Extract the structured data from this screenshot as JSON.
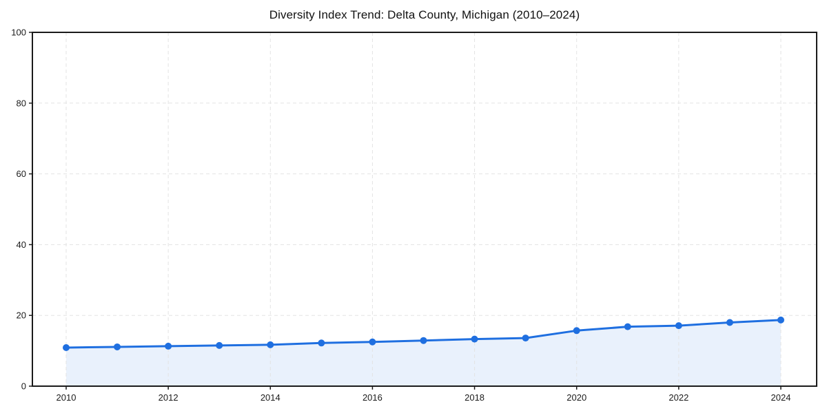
{
  "page": {
    "background": "#ffffff"
  },
  "chart_data": {
    "type": "area",
    "title": "Diversity Index Trend: Delta County, Michigan (2010–2024)",
    "x": [
      2010,
      2011,
      2012,
      2013,
      2014,
      2015,
      2016,
      2017,
      2018,
      2019,
      2020,
      2021,
      2022,
      2023,
      2024
    ],
    "series": [
      {
        "name": "Diversity Index",
        "values": [
          10.9,
          11.1,
          11.3,
          11.5,
          11.7,
          12.2,
          12.5,
          12.9,
          13.3,
          13.6,
          15.7,
          16.8,
          17.1,
          18.0,
          18.7
        ]
      }
    ],
    "xlabel": "",
    "ylabel": "",
    "ylim": [
      0,
      100
    ],
    "yticks": [
      0,
      20,
      40,
      60,
      80,
      100
    ],
    "xticks": [
      2010,
      2012,
      2014,
      2016,
      2018,
      2020,
      2022,
      2024
    ],
    "grid": true,
    "grid_style": "dashed",
    "legend": false,
    "colors": {
      "line": "#1f6fe0",
      "marker": "#1f6fe0",
      "fill": "#e9f1fc",
      "grid": "#e3e3e3",
      "axis": "#1a1a1a",
      "text": "#1a1a1a",
      "background": "#ffffff"
    }
  }
}
